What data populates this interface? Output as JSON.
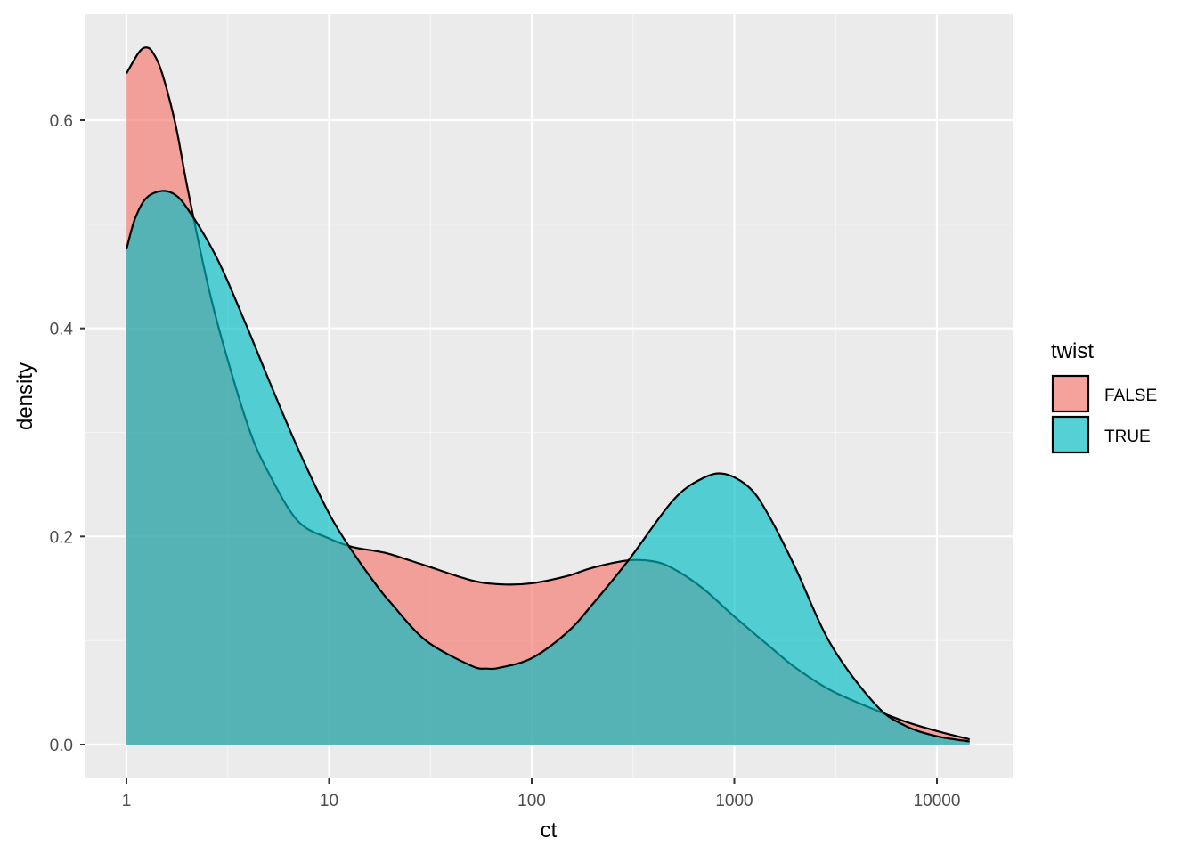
{
  "chart_data": {
    "type": "area",
    "subtype": "density",
    "xlabel": "ct",
    "ylabel": "density",
    "x_scale": "log10",
    "xlim": [
      0.63,
      23000
    ],
    "ylim": [
      -0.055,
      0.7
    ],
    "x_ticks": [
      1,
      10,
      100,
      1000,
      10000
    ],
    "x_tick_labels": [
      "1",
      "10",
      "100",
      "1000",
      "10000"
    ],
    "y_ticks": [
      0.0,
      0.2,
      0.4,
      0.6
    ],
    "y_tick_labels": [
      "0.0",
      "0.2",
      "0.4",
      "0.6"
    ],
    "grid": true,
    "legend": {
      "title": "twist",
      "position": "right"
    },
    "series": [
      {
        "name": "FALSE",
        "color": "#F8766D",
        "x": [
          1,
          1.15,
          1.25,
          1.35,
          1.5,
          1.75,
          2,
          2.5,
          3,
          4,
          5,
          7,
          10,
          13,
          17,
          20,
          30,
          50,
          70,
          100,
          150,
          200,
          300,
          400,
          500,
          700,
          1000,
          1500,
          2000,
          3000,
          5000,
          7000,
          10000,
          14500
        ],
        "y": [
          0.645,
          0.665,
          0.67,
          0.665,
          0.645,
          0.595,
          0.535,
          0.445,
          0.385,
          0.305,
          0.262,
          0.215,
          0.198,
          0.19,
          0.186,
          0.183,
          0.172,
          0.158,
          0.154,
          0.155,
          0.162,
          0.17,
          0.177,
          0.176,
          0.169,
          0.15,
          0.123,
          0.094,
          0.074,
          0.052,
          0.033,
          0.022,
          0.013,
          0.005
        ]
      },
      {
        "name": "TRUE",
        "color": "#00BFC4",
        "x": [
          1,
          1.1,
          1.25,
          1.5,
          1.75,
          2,
          2.5,
          3,
          4,
          5,
          7,
          10,
          13,
          17,
          20,
          30,
          50,
          60,
          70,
          100,
          150,
          200,
          300,
          500,
          700,
          900,
          1200,
          1500,
          2000,
          3000,
          5000,
          7000,
          10000,
          14500
        ],
        "y": [
          0.476,
          0.505,
          0.525,
          0.532,
          0.528,
          0.515,
          0.485,
          0.455,
          0.398,
          0.352,
          0.285,
          0.222,
          0.186,
          0.154,
          0.137,
          0.1,
          0.076,
          0.073,
          0.074,
          0.083,
          0.108,
          0.135,
          0.177,
          0.235,
          0.256,
          0.26,
          0.246,
          0.218,
          0.17,
          0.096,
          0.038,
          0.018,
          0.008,
          0.003
        ]
      }
    ]
  }
}
